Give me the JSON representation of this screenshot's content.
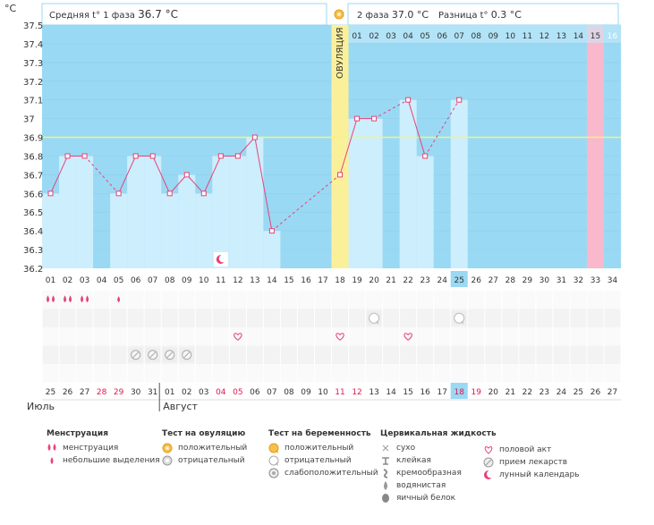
{
  "header": {
    "unit_label": "°C",
    "phase1": "Средняя t° 1 фаза",
    "phase1_value": "36.7 °C",
    "phase2": "2 фаза",
    "phase2_value": "37.0 °C",
    "diff": "Разница t°",
    "diff_value": "0.3 °C",
    "ovulation_label": "ОВУЛЯЦИЯ"
  },
  "colors": {
    "chart_bg": "#9ad9f3",
    "bar": "#cdeefc",
    "line": "#e8417a",
    "ovulation": "#fbf09a",
    "coverline": "#eef2a0",
    "highlight_day": "#f9b8cc",
    "today_badge": "#9ad9f3"
  },
  "chart_data": {
    "type": "line",
    "title": "",
    "xlabel": "",
    "ylabel": "°C",
    "ylim": [
      36.2,
      37.5
    ],
    "yticks": [
      "37.5",
      "37.4",
      "37.3",
      "37.2",
      "37.1",
      "37",
      "36.9",
      "36.8",
      "36.7",
      "36.6",
      "36.5",
      "36.4",
      "36.3",
      "36.2"
    ],
    "coverline": 36.9,
    "ovulation_day": 18,
    "x": [
      1,
      2,
      3,
      4,
      5,
      6,
      7,
      8,
      9,
      10,
      11,
      12,
      13,
      14,
      15,
      16,
      17,
      18,
      19,
      20,
      21,
      22,
      23,
      24,
      25,
      26,
      27,
      28,
      29,
      30,
      31,
      32,
      33,
      34
    ],
    "cycle_day_labels": [
      "01",
      "02",
      "03",
      "04",
      "05",
      "06",
      "07",
      "08",
      "09",
      "10",
      "11",
      "12",
      "13",
      "14",
      "15",
      "16",
      "17",
      "18",
      "19",
      "20",
      "21",
      "22",
      "23",
      "24",
      "25",
      "26",
      "27",
      "28",
      "29",
      "30",
      "31",
      "32",
      "33",
      "34"
    ],
    "temperatures": [
      36.6,
      36.8,
      36.8,
      null,
      36.6,
      36.8,
      36.8,
      36.6,
      36.7,
      36.6,
      36.8,
      36.8,
      36.9,
      36.4,
      null,
      null,
      null,
      36.7,
      37.0,
      37.0,
      null,
      37.1,
      36.8,
      null,
      37.1,
      null,
      null,
      null,
      null,
      null,
      null,
      null,
      null,
      null
    ],
    "phase2_day_labels": [
      "01",
      "02",
      "03",
      "04",
      "05",
      "06",
      "07",
      "08",
      "09",
      "10",
      "11",
      "12",
      "13",
      "14",
      "15",
      "16"
    ],
    "highlight_phase2_index": 15,
    "today_index": 25,
    "moon_day": 11,
    "date_labels": [
      "25",
      "26",
      "27",
      "28",
      "29",
      "30",
      "31",
      "01",
      "02",
      "03",
      "04",
      "05",
      "06",
      "07",
      "08",
      "09",
      "10",
      "11",
      "12",
      "13",
      "14",
      "15",
      "16",
      "17",
      "18",
      "19",
      "20",
      "21",
      "22",
      "23",
      "24",
      "25",
      "26",
      "27"
    ],
    "red_date_indices": [
      3,
      4,
      10,
      11,
      17,
      18,
      24,
      25
    ],
    "today_date_index": 25,
    "months": [
      "Июль",
      "Август"
    ],
    "events": {
      "menstruation_heavy": [
        1,
        2,
        3
      ],
      "menstruation_light": [
        5
      ],
      "pregnancy_test_negative": [
        20,
        25
      ],
      "intercourse": [
        12,
        18,
        22
      ],
      "medication": [
        6,
        7,
        8,
        9
      ]
    }
  },
  "legend": {
    "groups": [
      {
        "title": "Менструация",
        "items": [
          {
            "icon": "menstruation-icon",
            "label": "менструация"
          },
          {
            "icon": "spotting-icon",
            "label": "небольшие выделения"
          }
        ]
      },
      {
        "title": "Тест на овуляцию",
        "items": [
          {
            "icon": "ov-test-positive-icon",
            "label": "положительный"
          },
          {
            "icon": "ov-test-negative-icon",
            "label": "отрицательный"
          }
        ]
      },
      {
        "title": "Тест на беременность",
        "items": [
          {
            "icon": "preg-test-positive-icon",
            "label": "положительный"
          },
          {
            "icon": "preg-test-negative-icon",
            "label": "отрицательный"
          },
          {
            "icon": "preg-test-weak-icon",
            "label": "слабоположительный"
          }
        ]
      },
      {
        "title": "Цервикальная жидкость",
        "items": [
          {
            "icon": "dry-icon",
            "label": "сухо"
          },
          {
            "icon": "sticky-icon",
            "label": "клейкая"
          },
          {
            "icon": "creamy-icon",
            "label": "кремообразная"
          },
          {
            "icon": "watery-icon",
            "label": "водянистая"
          },
          {
            "icon": "egg-white-icon",
            "label": "яичный белок"
          }
        ]
      },
      {
        "title": "",
        "items": [
          {
            "icon": "heart-icon",
            "label": "половой акт"
          },
          {
            "icon": "pill-icon",
            "label": "прием лекарств"
          },
          {
            "icon": "moon-icon",
            "label": "лунный календарь"
          }
        ]
      }
    ]
  }
}
